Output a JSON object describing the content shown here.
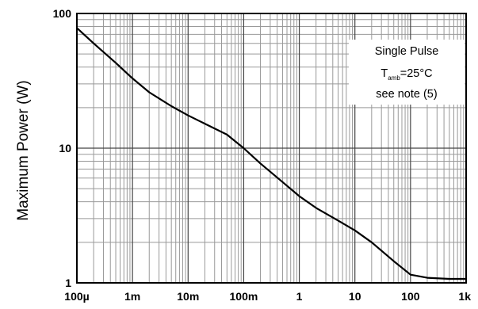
{
  "chart_data": {
    "type": "line",
    "title": "",
    "xlabel": "",
    "ylabel": "Maximum Power (W)",
    "x_scale": "log",
    "y_scale": "log",
    "xlim": [
      0.0001,
      1000
    ],
    "ylim": [
      1,
      100
    ],
    "grid": true,
    "x_ticks": [
      {
        "value": 0.0001,
        "label": "100µ"
      },
      {
        "value": 0.001,
        "label": "1m"
      },
      {
        "value": 0.01,
        "label": "10m"
      },
      {
        "value": 0.1,
        "label": "100m"
      },
      {
        "value": 1,
        "label": "1"
      },
      {
        "value": 10,
        "label": "10"
      },
      {
        "value": 100,
        "label": "100"
      },
      {
        "value": 1000,
        "label": "1k"
      }
    ],
    "y_ticks": [
      {
        "value": 1,
        "label": "1"
      },
      {
        "value": 10,
        "label": "10"
      },
      {
        "value": 100,
        "label": "100"
      }
    ],
    "annotation": {
      "line1": "Single Pulse",
      "line2_main": "T",
      "line2_sub": "amb",
      "line2_rest": "=25°C",
      "line3": "see note (5)"
    },
    "series": [
      {
        "x": [
          0.0001,
          0.0002,
          0.0005,
          0.001,
          0.002,
          0.005,
          0.01,
          0.02,
          0.05,
          0.1,
          0.2,
          0.5,
          1,
          2,
          5,
          10,
          20,
          50,
          100,
          200,
          500,
          1000
        ],
        "y": [
          78,
          60,
          43,
          33,
          26,
          20.5,
          17.5,
          15.2,
          12.6,
          10,
          7.7,
          5.6,
          4.4,
          3.6,
          2.9,
          2.45,
          2.0,
          1.45,
          1.15,
          1.09,
          1.07,
          1.07
        ]
      }
    ]
  }
}
